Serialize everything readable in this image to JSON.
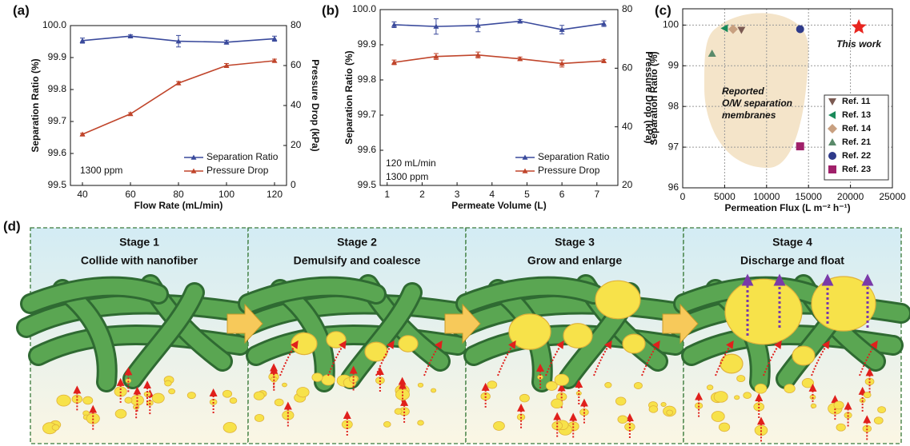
{
  "chart_data": [
    {
      "type": "line",
      "label": "(a)",
      "xlabel": "Flow Rate (mL/min)",
      "ylabel": "Separation Ratio (%)",
      "y2label": "Pressure Drop (kPa)",
      "x": [
        40,
        60,
        80,
        100,
        120
      ],
      "xlim": [
        35,
        125
      ],
      "xticks": [
        40,
        60,
        80,
        100,
        120
      ],
      "ylim": [
        99.5,
        100
      ],
      "yticks": [
        99.5,
        99.6,
        99.7,
        99.8,
        99.9,
        {
          "value": 100,
          "label": "100.0"
        }
      ],
      "y2lim": [
        0,
        80
      ],
      "y2ticks": [
        0,
        20,
        40,
        60,
        80
      ],
      "annotations": [
        "1300 ppm"
      ],
      "legend": "lower right",
      "series": [
        {
          "name": "Separation Ratio",
          "color": "#3a4a9c",
          "marker": "triangle-up",
          "values": [
            99.953,
            99.967,
            99.951,
            99.948,
            99.959
          ],
          "errors": [
            0.008,
            0.004,
            0.018,
            0.006,
            0.008
          ]
        },
        {
          "name": "Pressure Drop",
          "axis": "y2",
          "color": "#c0452b",
          "marker": "triangle-up",
          "values": [
            25.6,
            35.8,
            51.2,
            60,
            62.4
          ],
          "errors": [
            0.5,
            0.6,
            0.8,
            1,
            0.8
          ]
        }
      ]
    },
    {
      "type": "line",
      "label": "(b)",
      "xlabel": "Permeate Volume (L)",
      "ylabel": "Separation Ratio (%)",
      "y2label": "Pressure Drop (kPa)",
      "x": [
        1.2,
        2.4,
        3.6,
        4.8,
        6.0,
        7.2
      ],
      "xlim": [
        0.8,
        7.6
      ],
      "xticks": [
        1,
        2,
        3,
        4,
        5,
        6,
        7
      ],
      "ylim": [
        99.5,
        100
      ],
      "yticks": [
        99.5,
        99.6,
        99.7,
        99.8,
        99.9,
        {
          "value": 100,
          "label": "100.0"
        }
      ],
      "y2lim": [
        20,
        80
      ],
      "y2ticks": [
        20,
        40,
        60,
        80
      ],
      "annotations": [
        "120 mL/min",
        "1300 ppm"
      ],
      "legend": "lower right",
      "series": [
        {
          "name": "Separation Ratio",
          "color": "#3a4a9c",
          "marker": "triangle-up",
          "values": [
            99.957,
            99.952,
            99.955,
            99.967,
            99.943,
            99.96
          ],
          "errors": [
            0.008,
            0.022,
            0.018,
            0.005,
            0.012,
            0.008
          ]
        },
        {
          "name": "Pressure Drop",
          "axis": "y2",
          "color": "#c0452b",
          "marker": "triangle-up",
          "values": [
            62,
            64,
            64.5,
            63.2,
            61.6,
            62.5
          ],
          "errors": [
            0.8,
            1,
            1,
            0.6,
            1.2,
            0.5
          ]
        }
      ]
    },
    {
      "type": "scatter",
      "label": "(c)",
      "xlabel": "Permeation Flux (L m⁻² h⁻¹)",
      "ylabel": "Separation Ratio (%)",
      "xlim": [
        0,
        25000
      ],
      "xticks": [
        0,
        5000,
        10000,
        15000,
        20000,
        25000
      ],
      "ylim": [
        96,
        100.4
      ],
      "yticks": [
        96,
        97,
        98,
        99,
        100
      ],
      "grid": true,
      "legend": "lower right",
      "region_label": [
        "Reported",
        "O/W separation",
        "membranes"
      ],
      "highlight": {
        "label": "This work",
        "x": 21000,
        "y": 99.95,
        "color": "#e8251f",
        "marker": "star"
      },
      "series": [
        {
          "name": "Ref. 11",
          "color": "#7b5a52",
          "marker": "triangle-down",
          "x": [
            7000
          ],
          "values": [
            99.88
          ]
        },
        {
          "name": "Ref. 13",
          "color": "#1a8a5a",
          "marker": "triangle-left",
          "x": [
            5000
          ],
          "values": [
            99.92
          ]
        },
        {
          "name": "Ref. 14",
          "color": "#c8a080",
          "marker": "diamond",
          "x": [
            6000
          ],
          "values": [
            99.9
          ]
        },
        {
          "name": "Ref. 21",
          "color": "#5a8a6a",
          "marker": "triangle-up",
          "x": [
            3500
          ],
          "values": [
            99.3
          ]
        },
        {
          "name": "Ref. 22",
          "color": "#2e3a8a",
          "marker": "circle",
          "x": [
            14000
          ],
          "values": [
            99.9
          ]
        },
        {
          "name": "Ref. 23",
          "color": "#a0206a",
          "marker": "square",
          "x": [
            14000
          ],
          "values": [
            97.02
          ]
        }
      ]
    }
  ],
  "diagram": {
    "label": "(d)",
    "stages": [
      {
        "title": "Stage 1",
        "caption": "Collide with nanofiber"
      },
      {
        "title": "Stage 2",
        "caption": "Demulsify and coalesce"
      },
      {
        "title": "Stage 3",
        "caption": "Grow and enlarge"
      },
      {
        "title": "Stage 4",
        "caption": "Discharge and float"
      }
    ]
  }
}
